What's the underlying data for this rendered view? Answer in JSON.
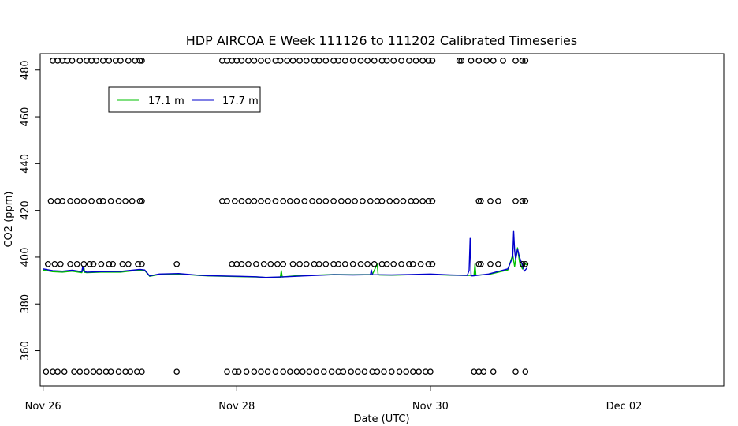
{
  "chart_data": {
    "type": "line",
    "title": "HDP AIRCOA E  Week 111126 to 111202  Calibrated Timeseries",
    "xlabel": "Date (UTC)",
    "ylabel": "CO2 (ppm)",
    "x_unit": "days",
    "xlim": [
      -0.03,
      7.03
    ],
    "ylim": [
      345,
      487
    ],
    "x_ticks": [
      {
        "x": 0,
        "label": "Nov 26"
      },
      {
        "x": 2,
        "label": "Nov 28"
      },
      {
        "x": 4,
        "label": "Nov 30"
      },
      {
        "x": 6,
        "label": "Dec 02"
      }
    ],
    "y_ticks": [
      360,
      380,
      400,
      420,
      440,
      460,
      480
    ],
    "grid": false,
    "legend_position": "top-left",
    "series": [
      {
        "name": "17.1 m",
        "color": "#00c000",
        "x": [
          0.0,
          0.1,
          0.2,
          0.3,
          0.4,
          0.42,
          0.43,
          0.45,
          0.6,
          0.8,
          1.0,
          1.05,
          1.1,
          1.2,
          1.4,
          1.6,
          1.7,
          2.0,
          2.2,
          2.3,
          2.45,
          2.46,
          2.47,
          2.6,
          2.8,
          3.0,
          3.2,
          3.4,
          3.45,
          3.46,
          3.47,
          3.6,
          3.8,
          4.0,
          4.2,
          4.35,
          4.45,
          4.46,
          4.47,
          4.6,
          4.8,
          4.85,
          4.87,
          4.9,
          4.92,
          4.95,
          4.97,
          5.0
        ],
        "y": [
          394.5,
          393.8,
          393.6,
          394.0,
          393.4,
          395.8,
          393.5,
          393.4,
          393.6,
          393.6,
          394.5,
          394.3,
          391.8,
          392.6,
          392.8,
          392.2,
          392.0,
          391.7,
          391.5,
          391.3,
          391.4,
          394.2,
          391.5,
          392.0,
          392.3,
          392.6,
          392.5,
          392.6,
          397.0,
          392.5,
          392.4,
          392.3,
          392.5,
          392.6,
          392.3,
          392.2,
          392.2,
          397.0,
          392.3,
          392.6,
          394.5,
          401.0,
          396.0,
          404.0,
          398.0,
          395.0,
          397.5,
          396.5
        ]
      },
      {
        "name": "17.7 m",
        "color": "#0000cc",
        "x": [
          0.0,
          0.1,
          0.2,
          0.3,
          0.4,
          0.41,
          0.42,
          0.45,
          0.6,
          0.8,
          1.0,
          1.05,
          1.1,
          1.2,
          1.4,
          1.6,
          1.7,
          2.0,
          2.2,
          2.3,
          2.5,
          2.7,
          3.0,
          3.2,
          3.38,
          3.39,
          3.4,
          3.6,
          3.8,
          4.0,
          4.2,
          4.38,
          4.4,
          4.41,
          4.42,
          4.44,
          4.6,
          4.8,
          4.85,
          4.86,
          4.87,
          4.88,
          4.9,
          4.92,
          4.95,
          4.97,
          5.0
        ],
        "y": [
          395.0,
          394.2,
          394.0,
          394.4,
          393.8,
          396.0,
          394.0,
          393.6,
          393.8,
          393.9,
          394.8,
          394.5,
          392.0,
          392.8,
          393.0,
          392.3,
          392.1,
          391.8,
          391.6,
          391.3,
          391.6,
          392.0,
          392.5,
          392.4,
          392.5,
          394.5,
          392.5,
          392.4,
          392.6,
          392.8,
          392.4,
          392.2,
          394.3,
          408.0,
          392.0,
          392.0,
          392.8,
          395.0,
          400.0,
          411.0,
          403.0,
          399.0,
          403.5,
          400.0,
          396.5,
          394.0,
          395.5
        ]
      }
    ],
    "markers": {
      "symbol": "open-circle",
      "color": "#000000",
      "levels": [
        {
          "y": 484,
          "x": [
            0.1,
            0.15,
            0.2,
            0.25,
            0.3,
            0.38,
            0.45,
            0.5,
            0.55,
            0.62,
            0.68,
            0.75,
            0.8,
            0.88,
            0.95,
            1.0,
            1.02,
            1.85,
            1.9,
            1.95,
            2.0,
            2.05,
            2.12,
            2.18,
            2.25,
            2.32,
            2.4,
            2.45,
            2.52,
            2.58,
            2.65,
            2.72,
            2.8,
            2.85,
            2.92,
            3.0,
            3.05,
            3.12,
            3.2,
            3.28,
            3.35,
            3.42,
            3.5,
            3.55,
            3.62,
            3.7,
            3.78,
            3.85,
            3.92,
            3.98,
            4.02,
            4.3,
            4.32,
            4.42,
            4.5,
            4.58,
            4.65,
            4.75,
            4.88,
            4.95,
            4.98
          ]
        },
        {
          "y": 424,
          "x": [
            0.08,
            0.15,
            0.2,
            0.28,
            0.35,
            0.42,
            0.5,
            0.58,
            0.62,
            0.7,
            0.78,
            0.85,
            0.92,
            1.0,
            1.02,
            1.85,
            1.9,
            1.98,
            2.05,
            2.12,
            2.18,
            2.25,
            2.32,
            2.4,
            2.48,
            2.55,
            2.62,
            2.7,
            2.78,
            2.85,
            2.92,
            3.0,
            3.08,
            3.15,
            3.22,
            3.3,
            3.38,
            3.45,
            3.5,
            3.58,
            3.65,
            3.72,
            3.8,
            3.85,
            3.92,
            3.98,
            4.02,
            4.5,
            4.52,
            4.62,
            4.7,
            4.88,
            4.95,
            4.98
          ]
        },
        {
          "y": 397,
          "x": [
            0.05,
            0.12,
            0.18,
            0.28,
            0.35,
            0.42,
            0.48,
            0.52,
            0.6,
            0.68,
            0.72,
            0.82,
            0.88,
            0.98,
            1.02,
            1.38,
            1.95,
            2.0,
            2.05,
            2.12,
            2.2,
            2.28,
            2.35,
            2.42,
            2.48,
            2.58,
            2.65,
            2.72,
            2.8,
            2.85,
            2.92,
            3.0,
            3.05,
            3.12,
            3.2,
            3.28,
            3.35,
            3.42,
            3.5,
            3.55,
            3.62,
            3.7,
            3.78,
            3.82,
            3.9,
            3.98,
            4.02,
            4.5,
            4.52,
            4.62,
            4.7,
            4.95,
            4.98
          ]
        },
        {
          "y": 351,
          "x": [
            0.03,
            0.1,
            0.15,
            0.22,
            0.32,
            0.38,
            0.45,
            0.52,
            0.58,
            0.65,
            0.7,
            0.78,
            0.85,
            0.9,
            0.97,
            1.02,
            1.38,
            1.9,
            1.98,
            2.02,
            2.1,
            2.18,
            2.25,
            2.32,
            2.4,
            2.48,
            2.55,
            2.62,
            2.68,
            2.75,
            2.82,
            2.9,
            2.98,
            3.05,
            3.1,
            3.18,
            3.25,
            3.32,
            3.4,
            3.45,
            3.52,
            3.6,
            3.68,
            3.75,
            3.82,
            3.88,
            3.95,
            4.0,
            4.45,
            4.5,
            4.55,
            4.65,
            4.88,
            4.98
          ]
        }
      ]
    }
  }
}
